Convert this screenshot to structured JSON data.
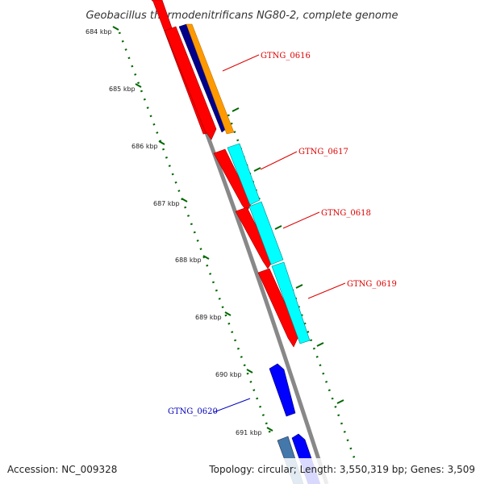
{
  "title": "Geobacillus thermodenitrificans NG80-2, complete genome",
  "footer": {
    "accession": "Accession: NC_009328",
    "summary": "Topology: circular; Length: 3,550,319 bp; Genes: 3,509"
  },
  "ticks": [
    {
      "label": "684 kbp"
    },
    {
      "label": "685 kbp"
    },
    {
      "label": "686 kbp"
    },
    {
      "label": "687 kbp"
    },
    {
      "label": "688 kbp"
    },
    {
      "label": "689 kbp"
    },
    {
      "label": "690 kbp"
    },
    {
      "label": "691 kbp"
    }
  ],
  "genes": [
    {
      "label": "GTNG_0616",
      "color": "#dd0000"
    },
    {
      "label": "GTNG_0617",
      "color": "#dd0000"
    },
    {
      "label": "GTNG_0618",
      "color": "#dd0000"
    },
    {
      "label": "GTNG_0619",
      "color": "#dd0000"
    },
    {
      "label": "GTNG_0620",
      "color": "#0000bb"
    }
  ],
  "colors": {
    "backbone": "#888888",
    "tick_marks": "#006600",
    "cds_red": "#ff0000",
    "cds_cyan": "#00ffff",
    "cds_orange": "#ff9900",
    "cds_navy": "#000088",
    "cds_blue": "#0000ff",
    "cds_steel": "#4477aa"
  }
}
